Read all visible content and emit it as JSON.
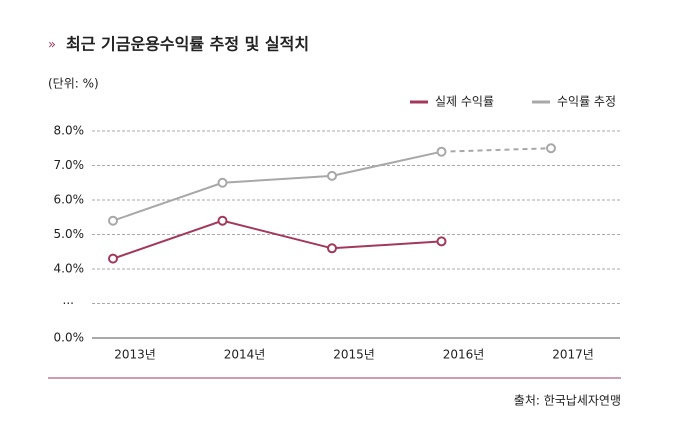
{
  "chart_data": {
    "type": "line",
    "title": "최근 기금운용수익률 추정 및 실적치",
    "unit_label": "(단위: %)",
    "source": "출처: 한국납세자연맹",
    "categories": [
      "2013년",
      "2014년",
      "2015년",
      "2016년",
      "2017년"
    ],
    "series": [
      {
        "name": "실제 수익률",
        "color": "#a3395a",
        "values": [
          4.3,
          5.4,
          4.6,
          4.8,
          null
        ]
      },
      {
        "name": "수익률 추정",
        "color": "#a8a8a8",
        "values": [
          5.4,
          6.5,
          6.7,
          7.4,
          7.5
        ],
        "dashed_from_index": 3
      }
    ],
    "ylim": [
      0,
      8
    ],
    "axis_break": [
      0,
      4
    ],
    "axis_break_label": "...",
    "yticks": [
      {
        "value": 0,
        "label": "0.0%"
      },
      {
        "value": 4,
        "label": "4.0%"
      },
      {
        "value": 5,
        "label": "5.0%"
      },
      {
        "value": 6,
        "label": "6.0%"
      },
      {
        "value": 7,
        "label": "7.0%"
      },
      {
        "value": 8,
        "label": "8.0%"
      }
    ],
    "grid": true,
    "legend": "top-right"
  }
}
